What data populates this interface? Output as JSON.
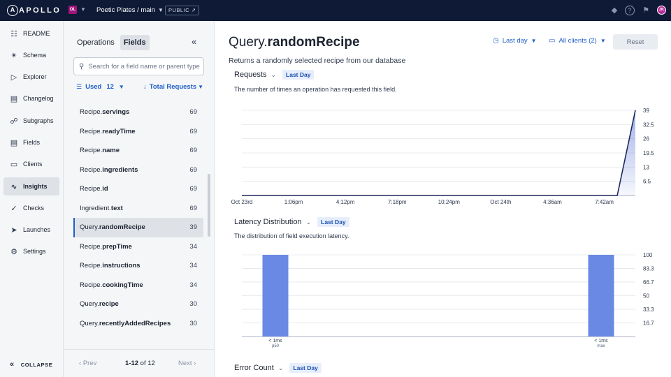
{
  "topbar": {
    "logo": "APOLLO",
    "org_initials": "OL",
    "graph_name": "Poetic Plates / main",
    "visibility_badge": "PUBLIC",
    "user_initials": "JK",
    "icons": [
      "graph-icon",
      "help-icon",
      "announcement-icon"
    ]
  },
  "nav": {
    "items": [
      {
        "label": "README",
        "icon": "readme-icon"
      },
      {
        "label": "Schema",
        "icon": "schema-icon"
      },
      {
        "label": "Explorer",
        "icon": "explorer-icon"
      },
      {
        "label": "Changelog",
        "icon": "changelog-icon"
      },
      {
        "label": "Subgraphs",
        "icon": "subgraphs-icon"
      },
      {
        "label": "Fields",
        "icon": "fields-icon"
      },
      {
        "label": "Clients",
        "icon": "clients-icon"
      },
      {
        "label": "Insights",
        "icon": "insights-icon"
      },
      {
        "label": "Checks",
        "icon": "checks-icon"
      },
      {
        "label": "Launches",
        "icon": "launches-icon"
      },
      {
        "label": "Settings",
        "icon": "settings-icon"
      }
    ],
    "active": "Insights",
    "collapse_label": "COLLAPSE"
  },
  "panel": {
    "tabs": [
      "Operations",
      "Fields"
    ],
    "active_tab": "Fields",
    "search_placeholder": "Search for a field name or parent type",
    "filter_used_label": "Used",
    "filter_used_count": "12",
    "sort_label": "Total Requests",
    "fields": [
      {
        "type": "Recipe.",
        "name": "servings",
        "count": "69"
      },
      {
        "type": "Recipe.",
        "name": "readyTime",
        "count": "69"
      },
      {
        "type": "Recipe.",
        "name": "name",
        "count": "69"
      },
      {
        "type": "Recipe.",
        "name": "ingredients",
        "count": "69"
      },
      {
        "type": "Recipe.",
        "name": "id",
        "count": "69"
      },
      {
        "type": "Ingredient.",
        "name": "text",
        "count": "69"
      },
      {
        "type": "Query.",
        "name": "randomRecipe",
        "count": "39",
        "selected": true
      },
      {
        "type": "Recipe.",
        "name": "prepTime",
        "count": "34"
      },
      {
        "type": "Recipe.",
        "name": "instructions",
        "count": "34"
      },
      {
        "type": "Recipe.",
        "name": "cookingTime",
        "count": "34"
      },
      {
        "type": "Query.",
        "name": "recipe",
        "count": "30"
      },
      {
        "type": "Query.",
        "name": "recentlyAddedRecipes",
        "count": "30"
      }
    ],
    "pager": {
      "prev": "Prev",
      "range": "1-12",
      "of": "of 12",
      "next": "Next"
    }
  },
  "main": {
    "title_type": "Query.",
    "title_field": "randomRecipe",
    "description": "Returns a randomly selected recipe from our database",
    "time_range": "Last day",
    "clients": "All clients (2)",
    "reset": "Reset",
    "requests": {
      "title": "Requests",
      "pill": "Last Day",
      "desc": "The number of times an operation has requested this field."
    },
    "latency": {
      "title": "Latency Distribution",
      "pill": "Last Day",
      "desc": "The distribution of field execution latency."
    },
    "errors": {
      "title": "Error Count",
      "pill": "Last Day"
    }
  },
  "colors": {
    "accent": "#1f5ec9",
    "bar": "#6a89e4",
    "line": "#1d2a5b",
    "topbar": "#0f1a36"
  },
  "chart_data": [
    {
      "type": "area",
      "title": "Requests",
      "x_ticks": [
        "Oct 23rd",
        "1:06pm",
        "4:12pm",
        "7:18pm",
        "10:24pm",
        "Oct 24th",
        "4:36am",
        "7:42am"
      ],
      "y_ticks": [
        "39",
        "32.5",
        "26",
        "19.5",
        "13",
        "6.5"
      ],
      "ylim": [
        0,
        39
      ],
      "series": [
        {
          "x": [
            0,
            1,
            2,
            3,
            4,
            5,
            6,
            7,
            7.25,
            7.6
          ],
          "values": [
            0,
            0,
            0,
            0,
            0,
            0,
            0,
            0,
            0,
            39
          ]
        }
      ],
      "grid": true
    },
    {
      "type": "bar",
      "title": "Latency Distribution",
      "categories": [
        "< 1ms",
        "< 1ms"
      ],
      "sublabels": [
        "p50",
        "max"
      ],
      "values": [
        100,
        100
      ],
      "y_ticks": [
        "100",
        "83.3",
        "66.7",
        "50",
        "33.3",
        "16.7"
      ],
      "ylim": [
        0,
        100
      ],
      "grid": true
    }
  ]
}
